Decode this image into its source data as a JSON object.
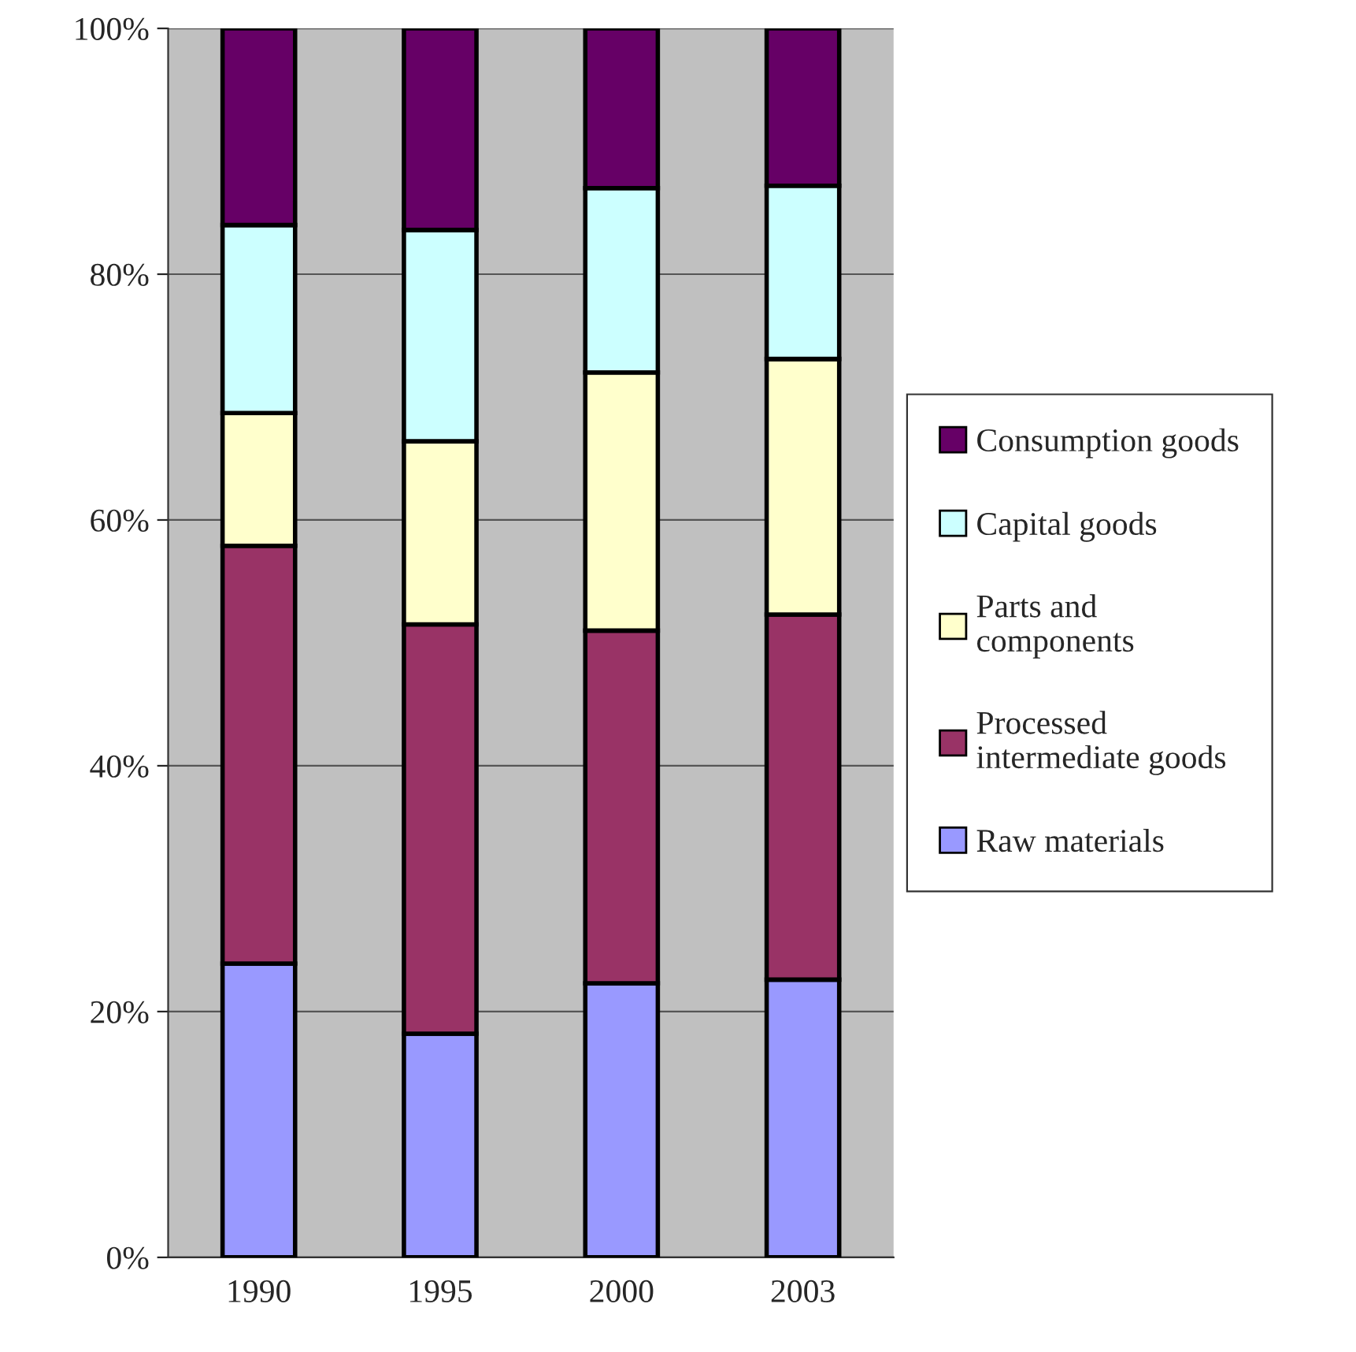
{
  "chart_data": {
    "type": "bar",
    "stacked": true,
    "categories": [
      "1990",
      "1995",
      "2000",
      "2003"
    ],
    "series": [
      {
        "name": "Raw materials",
        "color": "#9999ff",
        "values": [
          23.9,
          18.2,
          22.3,
          22.6
        ]
      },
      {
        "name": "Processed\nintermediate goods",
        "color": "#993366",
        "values": [
          34.0,
          33.3,
          28.7,
          29.7
        ]
      },
      {
        "name": "Parts and\ncomponents",
        "color": "#ffffcc",
        "values": [
          10.8,
          14.9,
          21.0,
          20.8
        ]
      },
      {
        "name": "Capital goods",
        "color": "#ccffff",
        "values": [
          15.3,
          17.2,
          15.0,
          14.1
        ]
      },
      {
        "name": "Consumption goods",
        "color": "#660066",
        "values": [
          16.0,
          16.4,
          13.0,
          12.8
        ]
      }
    ],
    "ylim": [
      0,
      100
    ],
    "yticks": [
      {
        "value": 0,
        "label": "0%"
      },
      {
        "value": 20,
        "label": "20%"
      },
      {
        "value": 40,
        "label": "40%"
      },
      {
        "value": 60,
        "label": "60%"
      },
      {
        "value": 80,
        "label": "80%"
      },
      {
        "value": 100,
        "label": "100%"
      }
    ],
    "grid": "y",
    "legend": "right"
  }
}
